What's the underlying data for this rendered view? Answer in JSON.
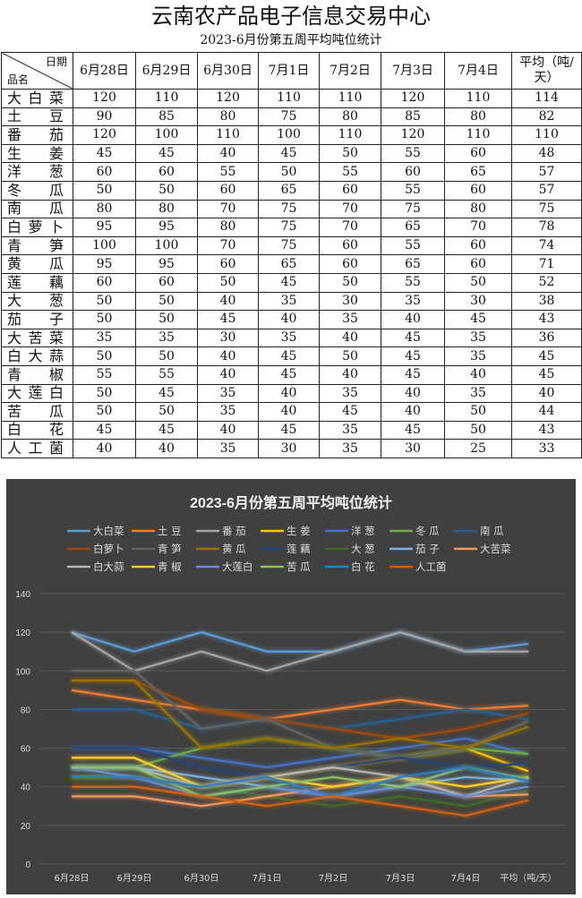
{
  "title": "云南农产品电子信息交易中心",
  "subtitle": "2023-6月份第五周平均吨位统计",
  "table": {
    "corner_top": "日期",
    "corner_bottom": "品名",
    "columns": [
      "6月28日",
      "6月29日",
      "6月30日",
      "7月1日",
      "7月2日",
      "7月3日",
      "7月4日",
      "平均（吨/天）"
    ],
    "rows": [
      {
        "name": "大白菜",
        "values": [
          120,
          110,
          120,
          110,
          110,
          120,
          110,
          114
        ]
      },
      {
        "name": "土豆",
        "values": [
          90,
          85,
          80,
          75,
          80,
          85,
          80,
          82
        ]
      },
      {
        "name": "番茄",
        "values": [
          120,
          100,
          110,
          100,
          110,
          120,
          110,
          110
        ]
      },
      {
        "name": "生姜",
        "values": [
          45,
          45,
          40,
          45,
          50,
          55,
          60,
          48
        ]
      },
      {
        "name": "洋葱",
        "values": [
          60,
          60,
          55,
          50,
          55,
          60,
          65,
          57
        ]
      },
      {
        "name": "冬瓜",
        "values": [
          50,
          50,
          60,
          65,
          60,
          55,
          60,
          57
        ]
      },
      {
        "name": "南瓜",
        "values": [
          80,
          80,
          70,
          75,
          70,
          75,
          80,
          75
        ]
      },
      {
        "name": "白萝卜",
        "values": [
          95,
          95,
          80,
          75,
          70,
          65,
          70,
          78
        ]
      },
      {
        "name": "青笋",
        "values": [
          100,
          100,
          70,
          75,
          60,
          55,
          60,
          74
        ]
      },
      {
        "name": "黄瓜",
        "values": [
          95,
          95,
          60,
          65,
          60,
          65,
          60,
          71
        ]
      },
      {
        "name": "莲藕",
        "values": [
          60,
          60,
          50,
          45,
          50,
          55,
          50,
          52
        ]
      },
      {
        "name": "大葱",
        "values": [
          50,
          50,
          40,
          35,
          30,
          35,
          30,
          38
        ]
      },
      {
        "name": "茄子",
        "values": [
          50,
          50,
          45,
          40,
          35,
          40,
          45,
          43
        ]
      },
      {
        "name": "大苦菜",
        "values": [
          35,
          35,
          30,
          35,
          40,
          45,
          35,
          36
        ]
      },
      {
        "name": "白大蒜",
        "values": [
          50,
          50,
          40,
          45,
          50,
          45,
          35,
          45
        ]
      },
      {
        "name": "青椒",
        "values": [
          55,
          55,
          40,
          45,
          40,
          45,
          40,
          45
        ]
      },
      {
        "name": "大莲白",
        "values": [
          50,
          45,
          35,
          40,
          35,
          40,
          35,
          40
        ]
      },
      {
        "name": "苦瓜",
        "values": [
          50,
          50,
          35,
          40,
          45,
          40,
          50,
          44
        ]
      },
      {
        "name": "白花",
        "values": [
          45,
          45,
          40,
          45,
          35,
          45,
          50,
          43
        ]
      },
      {
        "name": "人工菌",
        "values": [
          40,
          40,
          35,
          30,
          35,
          30,
          25,
          33
        ]
      }
    ]
  },
  "chart_data": {
    "type": "line",
    "title": "2023-6月份第五周平均吨位统计",
    "categories": [
      "6月28日",
      "6月29日",
      "6月30日",
      "7月1日",
      "7月2日",
      "7月3日",
      "7月4日",
      "平均（吨/天）"
    ],
    "yticks": [
      "0",
      "20",
      "40",
      "60",
      "80",
      "100",
      "120",
      "140"
    ],
    "ylim": [
      0,
      140
    ],
    "legend": "top",
    "colors": [
      "#5b9bd5",
      "#ed7d31",
      "#a5a5a5",
      "#ffc000",
      "#4472c4",
      "#70ad47",
      "#255e91",
      "#9e480e",
      "#636363",
      "#997300",
      "#264478",
      "#43682b",
      "#7cafdd",
      "#f1975a",
      "#b7b7b7",
      "#ffcd33",
      "#698ed0",
      "#8cc168",
      "#327dc2",
      "#d26012"
    ],
    "legend_labels": [
      "大白菜",
      "土 豆",
      "番 茄",
      "生 姜",
      "洋 葱",
      "冬 瓜",
      "南 瓜",
      "白萝卜",
      "青 笋",
      "黄 瓜",
      "莲 藕",
      "大 葱",
      "茄 子",
      "大苦菜",
      "白大蒜",
      "青 椒",
      "大莲白",
      "苦 瓜",
      "白 花",
      "人工菌"
    ]
  }
}
